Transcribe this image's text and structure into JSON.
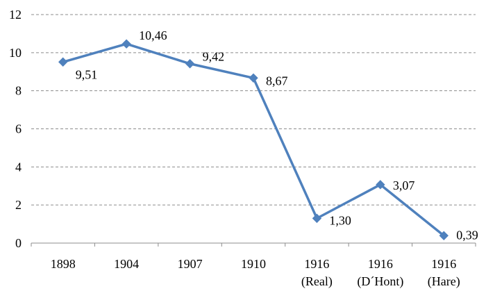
{
  "chart_data": {
    "type": "line",
    "title": "",
    "xlabel": "",
    "ylabel": "",
    "ylim": [
      0,
      12
    ],
    "yticks": [
      "0",
      "2",
      "4",
      "6",
      "8",
      "10",
      "12"
    ],
    "grid": true,
    "categories": [
      [
        "1898"
      ],
      [
        "1904"
      ],
      [
        "1907"
      ],
      [
        "1910"
      ],
      [
        "1916",
        "(Real)"
      ],
      [
        "1916",
        "(D´Hont)"
      ],
      [
        "1916",
        "(Hare)"
      ]
    ],
    "series": [
      {
        "values": [
          9.51,
          10.46,
          9.42,
          8.67,
          1.3,
          3.07,
          0.39
        ],
        "labels": [
          "9,51",
          "10,46",
          "9,42",
          "8,67",
          "1,30",
          "3,07",
          "0,39"
        ],
        "color": "#4f81bd"
      }
    ]
  }
}
